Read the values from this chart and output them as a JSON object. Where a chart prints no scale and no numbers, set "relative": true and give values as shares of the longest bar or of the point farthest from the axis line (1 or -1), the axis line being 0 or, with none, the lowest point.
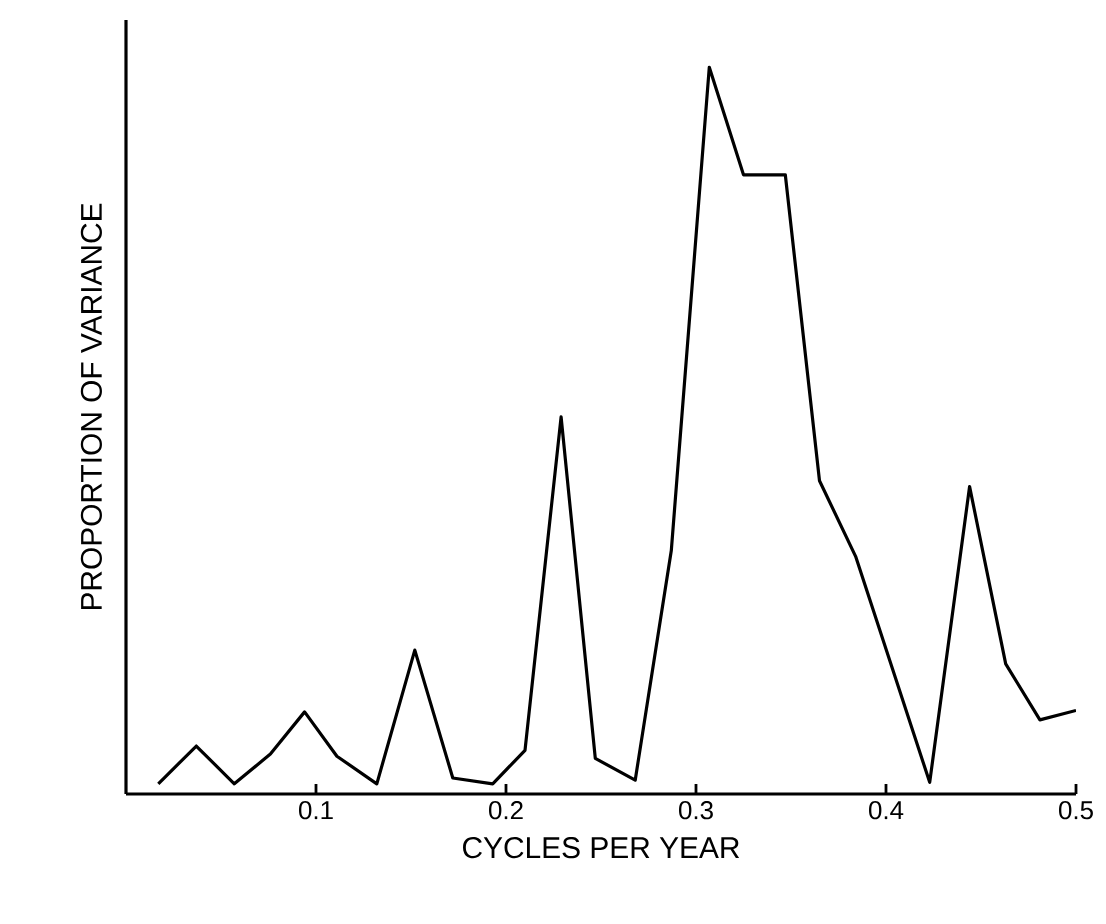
{
  "chart_data": {
    "type": "line",
    "relative": true,
    "xlabel": "CYCLES PER YEAR",
    "ylabel": "PROPORTION OF VARIANCE",
    "color": "#000000",
    "marker": "none",
    "line_style": "solid",
    "x": [
      0.017,
      0.037,
      0.057,
      0.076,
      0.094,
      0.111,
      0.132,
      0.152,
      0.172,
      0.193,
      0.21,
      0.229,
      0.247,
      0.268,
      0.287,
      0.307,
      0.325,
      0.347,
      0.365,
      0.384,
      0.423,
      0.444,
      0.463,
      0.481,
      0.5
    ],
    "values": [
      0.014,
      0.066,
      0.014,
      0.055,
      0.113,
      0.052,
      0.014,
      0.198,
      0.022,
      0.014,
      0.06,
      0.519,
      0.049,
      0.019,
      0.335,
      1,
      0.852,
      0.852,
      0.431,
      0.327,
      0.016,
      0.423,
      0.179,
      0.102,
      0.115
    ],
    "xlim": [
      0,
      0.5
    ],
    "xticks": [
      0.1,
      0.2,
      0.3,
      0.4,
      0.5
    ]
  }
}
